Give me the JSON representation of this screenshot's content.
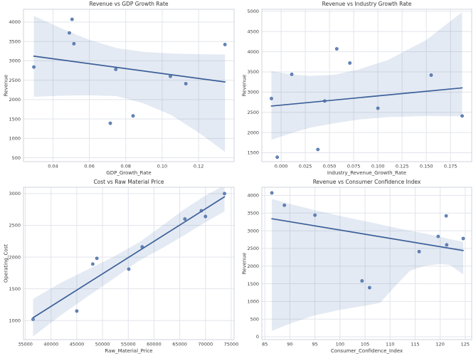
{
  "figure": {
    "background": "#ffffff",
    "grid_rows": 2,
    "grid_cols": 2
  },
  "palette": {
    "point_color": "#4c72b0",
    "point_edge_color": "#46669b",
    "line_color": "#3c6099",
    "band_color": "#4c72b0",
    "band_opacity": 0.15,
    "grid_color": "#e2e5ec",
    "spine_color": "#cfd3dc",
    "tick_color": "#3d3d3d",
    "title_color": "#333333"
  },
  "chart_data": [
    {
      "id": "revenue-vs-gdp-growth-rate",
      "type": "scatter",
      "title": "Revenue vs GDP Growth Rate",
      "xlabel": "GDP_Growth_Rate",
      "ylabel": "Revenue",
      "xlim": [
        0.0238,
        0.1395
      ],
      "ylim": [
        400,
        4330
      ],
      "xticks": [
        0.04,
        0.06,
        0.08,
        0.1,
        0.12
      ],
      "xtick_labels": [
        "0.04",
        "0.06",
        "0.08",
        "0.10",
        "0.12"
      ],
      "yticks": [
        500,
        1000,
        1500,
        2000,
        2500,
        3000,
        3500,
        4000
      ],
      "ytick_labels": [
        "500",
        "1000",
        "1500",
        "2000",
        "2500",
        "3000",
        "3500",
        "4000"
      ],
      "points": [
        [
          0.0295,
          2840
        ],
        [
          0.049,
          3720
        ],
        [
          0.0505,
          4070
        ],
        [
          0.0515,
          3440
        ],
        [
          0.0715,
          1390
        ],
        [
          0.0745,
          2780
        ],
        [
          0.084,
          1580
        ],
        [
          0.1045,
          2600
        ],
        [
          0.113,
          2410
        ],
        [
          0.1345,
          3420
        ]
      ],
      "regression_line": [
        [
          0.0295,
          3120
        ],
        [
          0.1345,
          2455
        ]
      ],
      "ci": 95,
      "ci_band": [
        [
          0.0295,
          2070,
          4160
        ],
        [
          0.045,
          2100,
          3830
        ],
        [
          0.06,
          2110,
          3540
        ],
        [
          0.075,
          2090,
          3330
        ],
        [
          0.09,
          1900,
          3230
        ],
        [
          0.105,
          1600,
          3190
        ],
        [
          0.12,
          1150,
          3170
        ],
        [
          0.1345,
          650,
          3165
        ]
      ]
    },
    {
      "id": "revenue-vs-industry-growth-rate",
      "type": "scatter",
      "title": "Revenue vs Industry Growth Rate",
      "xlabel": "Industry_Revenue_Growth_Rate",
      "ylabel": "Revenue",
      "xlim": [
        -0.0199,
        0.1969
      ],
      "ylim": [
        1280,
        5050
      ],
      "xticks": [
        0.0,
        0.025,
        0.05,
        0.075,
        0.1,
        0.125,
        0.15,
        0.175
      ],
      "xtick_labels": [
        "0.000",
        "0.025",
        "0.050",
        "0.075",
        "0.100",
        "0.125",
        "0.150",
        "0.175"
      ],
      "yticks": [
        1500,
        2000,
        2500,
        3000,
        3500,
        4000,
        4500,
        5000
      ],
      "ytick_labels": [
        "1500",
        "2000",
        "2500",
        "3000",
        "3500",
        "4000",
        "4500",
        "5000"
      ],
      "points": [
        [
          -0.01,
          2840
        ],
        [
          -0.004,
          1390
        ],
        [
          0.011,
          3440
        ],
        [
          0.038,
          1580
        ],
        [
          0.045,
          2780
        ],
        [
          0.0575,
          4070
        ],
        [
          0.071,
          3720
        ],
        [
          0.1,
          2600
        ],
        [
          0.155,
          3420
        ],
        [
          0.187,
          2410
        ]
      ],
      "regression_line": [
        [
          -0.01,
          2655
        ],
        [
          0.187,
          3105
        ]
      ],
      "ci": 95,
      "ci_band": [
        [
          -0.01,
          1820,
          3520
        ],
        [
          0.01,
          1980,
          3440
        ],
        [
          0.03,
          2120,
          3400
        ],
        [
          0.055,
          2230,
          3430
        ],
        [
          0.08,
          2320,
          3560
        ],
        [
          0.11,
          2380,
          3790
        ],
        [
          0.15,
          2410,
          4290
        ],
        [
          0.187,
          2400,
          4980
        ]
      ]
    },
    {
      "id": "cost-vs-raw-material-price",
      "type": "scatter",
      "title": "Cost vs Raw Material Price",
      "xlabel": "Raw_Material_Price",
      "ylabel": "Operating_Cost",
      "xlim": [
        34640,
        75560
      ],
      "ylim": [
        700,
        3100
      ],
      "xticks": [
        35000,
        40000,
        45000,
        50000,
        55000,
        60000,
        65000,
        70000,
        75000
      ],
      "xtick_labels": [
        "35000",
        "40000",
        "45000",
        "50000",
        "55000",
        "60000",
        "65000",
        "70000",
        "75000"
      ],
      "yticks": [
        1000,
        1500,
        2000,
        2500,
        3000
      ],
      "ytick_labels": [
        "1000",
        "1500",
        "2000",
        "2500",
        "3000"
      ],
      "points": [
        [
          36500,
          1020
        ],
        [
          45000,
          1150
        ],
        [
          48100,
          1890
        ],
        [
          48900,
          1980
        ],
        [
          55100,
          1810
        ],
        [
          57700,
          2160
        ],
        [
          66000,
          2600
        ],
        [
          69200,
          2730
        ],
        [
          70000,
          2640
        ],
        [
          73700,
          3000
        ]
      ],
      "regression_line": [
        [
          36500,
          1045
        ],
        [
          73700,
          2950
        ]
      ],
      "ci": 95,
      "ci_band": [
        [
          36500,
          750,
          1340
        ],
        [
          42000,
          1090,
          1600
        ],
        [
          48000,
          1430,
          1840
        ],
        [
          52000,
          1650,
          2000
        ],
        [
          57050,
          1940,
          2230
        ],
        [
          62000,
          2160,
          2520
        ],
        [
          66000,
          2350,
          2760
        ],
        [
          70000,
          2550,
          2970
        ],
        [
          73700,
          2720,
          3130
        ]
      ]
    },
    {
      "id": "revenue-vs-consumer-confidence-index",
      "type": "scatter",
      "title": "Revenue vs Consumer Confidence Index",
      "xlabel": "Consumer_Confidence_Index",
      "ylabel": "Revenue",
      "xlim": [
        84.4,
        126.3
      ],
      "ylim": [
        -80,
        4230
      ],
      "xticks": [
        85,
        90,
        95,
        100,
        105,
        110,
        115,
        120,
        125
      ],
      "xtick_labels": [
        "85",
        "90",
        "95",
        "100",
        "105",
        "110",
        "115",
        "120",
        "125"
      ],
      "yticks": [
        0,
        500,
        1000,
        1500,
        2000,
        2500,
        3000,
        3500,
        4000
      ],
      "ytick_labels": [
        "0",
        "500",
        "1000",
        "1500",
        "2000",
        "2500",
        "3000",
        "3500",
        "4000"
      ],
      "points": [
        [
          86.4,
          4070
        ],
        [
          88.9,
          3720
        ],
        [
          95.0,
          3440
        ],
        [
          104.4,
          1580
        ],
        [
          105.9,
          1390
        ],
        [
          115.8,
          2410
        ],
        [
          119.6,
          2840
        ],
        [
          121.2,
          3420
        ],
        [
          121.3,
          2600
        ],
        [
          124.6,
          2780
        ]
      ],
      "regression_line": [
        [
          86.4,
          3340
        ],
        [
          124.6,
          2440
        ]
      ],
      "ci": 95,
      "ci_band": [
        [
          86.4,
          170,
          3900
        ],
        [
          90,
          370,
          3760
        ],
        [
          95,
          610,
          3580
        ],
        [
          100,
          760,
          3420
        ],
        [
          105,
          880,
          3270
        ],
        [
          108,
          960,
          3180
        ],
        [
          111,
          1430,
          3090
        ],
        [
          114,
          1870,
          3000
        ],
        [
          117,
          2010,
          2920
        ],
        [
          120,
          2060,
          2830
        ],
        [
          122,
          2030,
          2760
        ],
        [
          124.6,
          1760,
          2690
        ]
      ]
    }
  ]
}
